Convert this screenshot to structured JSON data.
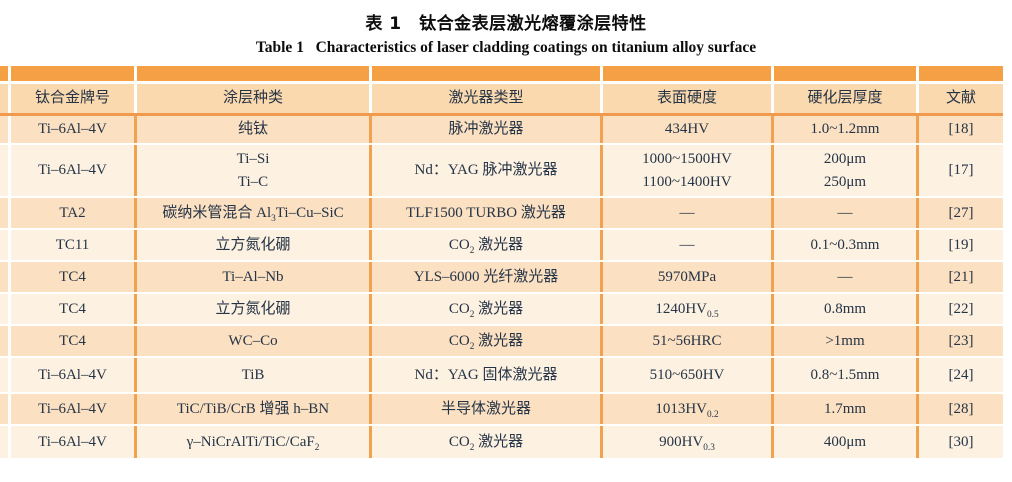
{
  "title": {
    "zh": "表 1　钛合金表层激光熔覆涂层特性",
    "en": "Table 1   Characteristics of laser cladding coatings on titanium alloy surface"
  },
  "colors": {
    "band": "#F5A044",
    "headerBg": "#FBD9AE",
    "rowOddBg": "#FBE0C1",
    "rowEvenBg": "#FDF1E1",
    "divider": "#F0A251",
    "rule": "#F09A4D",
    "text": "#253447"
  },
  "table": {
    "columns": [
      "钛合金牌号",
      "涂层种类",
      "激光器类型",
      "表面硬度",
      "硬化层厚度",
      "文献"
    ],
    "rows": [
      [
        [
          "Ti–6Al–4V"
        ],
        [
          "纯钛"
        ],
        [
          "脉冲激光器"
        ],
        [
          "434HV"
        ],
        [
          "1.0~1.2mm"
        ],
        [
          "[18]"
        ]
      ],
      [
        [
          "Ti–6Al–4V"
        ],
        [
          "Ti–Si",
          "Ti–C"
        ],
        [
          "Nd：YAG 脉冲激光器"
        ],
        [
          "1000~1500HV",
          "1100~1400HV"
        ],
        [
          "200μm",
          "250μm"
        ],
        [
          "[17]"
        ]
      ],
      [
        [
          "TA2"
        ],
        [
          "碳纳米管混合 Al_{3}Ti–Cu–SiC"
        ],
        [
          "TLF1500 TURBO 激光器"
        ],
        [
          "—"
        ],
        [
          "—"
        ],
        [
          "[27]"
        ]
      ],
      [
        [
          "TC11"
        ],
        [
          "立方氮化硼"
        ],
        [
          "CO_{2} 激光器"
        ],
        [
          "—"
        ],
        [
          "0.1~0.3mm"
        ],
        [
          "[19]"
        ]
      ],
      [
        [
          "TC4"
        ],
        [
          "Ti–Al–Nb"
        ],
        [
          "YLS–6000 光纤激光器"
        ],
        [
          "5970MPa"
        ],
        [
          "—"
        ],
        [
          "[21]"
        ]
      ],
      [
        [
          "TC4"
        ],
        [
          "立方氮化硼"
        ],
        [
          "CO_{2} 激光器"
        ],
        [
          "1240HV_{0.5}"
        ],
        [
          "0.8mm"
        ],
        [
          "[22]"
        ]
      ],
      [
        [
          "TC4"
        ],
        [
          "WC–Co"
        ],
        [
          "CO_{2} 激光器"
        ],
        [
          "51~56HRC"
        ],
        [
          ">1mm"
        ],
        [
          "[23]"
        ]
      ],
      [
        [
          "Ti–6Al–4V"
        ],
        [
          "TiB"
        ],
        [
          "Nd：YAG 固体激光器"
        ],
        [
          "510~650HV"
        ],
        [
          "0.8~1.5mm"
        ],
        [
          "[24]"
        ]
      ],
      [
        [
          "Ti–6Al–4V"
        ],
        [
          "TiC/TiB/CrB 增强 h–BN"
        ],
        [
          "半导体激光器"
        ],
        [
          "1013HV_{0.2}"
        ],
        [
          "1.7mm"
        ],
        [
          "[28]"
        ]
      ],
      [
        [
          "Ti–6Al–4V"
        ],
        [
          "γ–NiCrAlTi/TiC/CaF_{2}"
        ],
        [
          "CO_{2} 激光器"
        ],
        [
          "900HV_{0.3}"
        ],
        [
          "400μm"
        ],
        [
          "[30]"
        ]
      ]
    ]
  }
}
